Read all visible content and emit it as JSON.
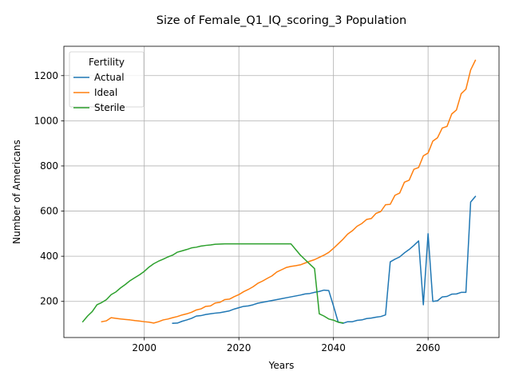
{
  "chart_data": {
    "type": "line",
    "title": "Size of Female_Q1_IQ_scoring_3 Population",
    "xlabel": "Years",
    "ylabel": "Number of Americans",
    "xlim": [
      1983,
      2075
    ],
    "ylim": [
      40,
      1330
    ],
    "xticks": [
      2000,
      2020,
      2040,
      2060
    ],
    "yticks": [
      200,
      400,
      600,
      800,
      1000,
      1200
    ],
    "grid": true,
    "legend": {
      "title": "Fertility",
      "placement": "top-left"
    },
    "series": [
      {
        "name": "Actual",
        "color": "#1f77b4",
        "points": [
          [
            2006,
            103
          ],
          [
            2007,
            104
          ],
          [
            2008,
            112
          ],
          [
            2009,
            118
          ],
          [
            2010,
            125
          ],
          [
            2011,
            135
          ],
          [
            2012,
            137
          ],
          [
            2013,
            142
          ],
          [
            2014,
            145
          ],
          [
            2015,
            148
          ],
          [
            2016,
            150
          ],
          [
            2017,
            154
          ],
          [
            2018,
            158
          ],
          [
            2019,
            166
          ],
          [
            2020,
            172
          ],
          [
            2021,
            178
          ],
          [
            2022,
            180
          ],
          [
            2023,
            185
          ],
          [
            2024,
            192
          ],
          [
            2025,
            196
          ],
          [
            2026,
            200
          ],
          [
            2027,
            204
          ],
          [
            2028,
            208
          ],
          [
            2029,
            212
          ],
          [
            2030,
            216
          ],
          [
            2031,
            220
          ],
          [
            2032,
            224
          ],
          [
            2033,
            228
          ],
          [
            2034,
            233
          ],
          [
            2035,
            235
          ],
          [
            2036,
            240
          ],
          [
            2037,
            244
          ],
          [
            2038,
            250
          ],
          [
            2039,
            248
          ],
          [
            2040,
            180
          ],
          [
            2041,
            108
          ],
          [
            2042,
            103
          ],
          [
            2043,
            110
          ],
          [
            2044,
            110
          ],
          [
            2045,
            116
          ],
          [
            2046,
            118
          ],
          [
            2047,
            124
          ],
          [
            2048,
            126
          ],
          [
            2049,
            130
          ],
          [
            2050,
            133
          ],
          [
            2051,
            140
          ],
          [
            2052,
            375
          ],
          [
            2053,
            387
          ],
          [
            2054,
            397
          ],
          [
            2055,
            415
          ],
          [
            2056,
            430
          ],
          [
            2057,
            448
          ],
          [
            2058,
            468
          ],
          [
            2059,
            185
          ],
          [
            2060,
            500
          ],
          [
            2061,
            200
          ],
          [
            2062,
            203
          ],
          [
            2063,
            220
          ],
          [
            2064,
            222
          ],
          [
            2065,
            232
          ],
          [
            2066,
            233
          ],
          [
            2067,
            240
          ],
          [
            2068,
            240
          ],
          [
            2069,
            640
          ],
          [
            2070,
            665
          ]
        ]
      },
      {
        "name": "Ideal",
        "color": "#ff7f0e",
        "points": [
          [
            1991,
            110
          ],
          [
            1992,
            114
          ],
          [
            1993,
            128
          ],
          [
            1994,
            125
          ],
          [
            1995,
            122
          ],
          [
            1996,
            120
          ],
          [
            1997,
            118
          ],
          [
            1998,
            115
          ],
          [
            1999,
            113
          ],
          [
            2000,
            110
          ],
          [
            2001,
            108
          ],
          [
            2002,
            104
          ],
          [
            2003,
            110
          ],
          [
            2004,
            118
          ],
          [
            2005,
            122
          ],
          [
            2006,
            128
          ],
          [
            2007,
            133
          ],
          [
            2008,
            140
          ],
          [
            2009,
            145
          ],
          [
            2010,
            152
          ],
          [
            2011,
            162
          ],
          [
            2012,
            167
          ],
          [
            2013,
            178
          ],
          [
            2014,
            180
          ],
          [
            2015,
            193
          ],
          [
            2016,
            196
          ],
          [
            2017,
            208
          ],
          [
            2018,
            210
          ],
          [
            2019,
            221
          ],
          [
            2020,
            230
          ],
          [
            2021,
            243
          ],
          [
            2022,
            253
          ],
          [
            2023,
            265
          ],
          [
            2024,
            280
          ],
          [
            2025,
            290
          ],
          [
            2026,
            302
          ],
          [
            2027,
            313
          ],
          [
            2028,
            330
          ],
          [
            2029,
            340
          ],
          [
            2030,
            350
          ],
          [
            2031,
            355
          ],
          [
            2032,
            358
          ],
          [
            2033,
            362
          ],
          [
            2034,
            370
          ],
          [
            2035,
            378
          ],
          [
            2036,
            385
          ],
          [
            2037,
            395
          ],
          [
            2038,
            405
          ],
          [
            2039,
            417
          ],
          [
            2040,
            435
          ],
          [
            2041,
            455
          ],
          [
            2042,
            475
          ],
          [
            2043,
            498
          ],
          [
            2044,
            513
          ],
          [
            2045,
            533
          ],
          [
            2046,
            545
          ],
          [
            2047,
            563
          ],
          [
            2048,
            567
          ],
          [
            2049,
            590
          ],
          [
            2050,
            598
          ],
          [
            2051,
            628
          ],
          [
            2052,
            630
          ],
          [
            2053,
            670
          ],
          [
            2054,
            680
          ],
          [
            2055,
            728
          ],
          [
            2056,
            737
          ],
          [
            2057,
            785
          ],
          [
            2058,
            793
          ],
          [
            2059,
            845
          ],
          [
            2060,
            857
          ],
          [
            2061,
            910
          ],
          [
            2062,
            925
          ],
          [
            2063,
            968
          ],
          [
            2064,
            975
          ],
          [
            2065,
            1030
          ],
          [
            2066,
            1048
          ],
          [
            2067,
            1120
          ],
          [
            2068,
            1140
          ],
          [
            2069,
            1225
          ],
          [
            2070,
            1268
          ]
        ]
      },
      {
        "name": "Sterile",
        "color": "#2ca02c",
        "points": [
          [
            1987,
            110
          ],
          [
            1988,
            135
          ],
          [
            1989,
            155
          ],
          [
            1990,
            185
          ],
          [
            1991,
            195
          ],
          [
            1992,
            208
          ],
          [
            1993,
            230
          ],
          [
            1994,
            242
          ],
          [
            1995,
            260
          ],
          [
            1996,
            275
          ],
          [
            1997,
            292
          ],
          [
            1998,
            305
          ],
          [
            1999,
            318
          ],
          [
            2000,
            333
          ],
          [
            2001,
            352
          ],
          [
            2002,
            367
          ],
          [
            2003,
            378
          ],
          [
            2004,
            387
          ],
          [
            2005,
            397
          ],
          [
            2006,
            405
          ],
          [
            2007,
            418
          ],
          [
            2008,
            424
          ],
          [
            2009,
            430
          ],
          [
            2010,
            437
          ],
          [
            2011,
            440
          ],
          [
            2012,
            445
          ],
          [
            2013,
            448
          ],
          [
            2014,
            450
          ],
          [
            2015,
            453
          ],
          [
            2016,
            454
          ],
          [
            2017,
            455
          ],
          [
            2018,
            455
          ],
          [
            2019,
            455
          ],
          [
            2020,
            455
          ],
          [
            2021,
            455
          ],
          [
            2022,
            455
          ],
          [
            2023,
            455
          ],
          [
            2024,
            455
          ],
          [
            2025,
            455
          ],
          [
            2026,
            455
          ],
          [
            2027,
            455
          ],
          [
            2028,
            455
          ],
          [
            2029,
            455
          ],
          [
            2030,
            455
          ],
          [
            2031,
            455
          ],
          [
            2032,
            430
          ],
          [
            2033,
            405
          ],
          [
            2034,
            385
          ],
          [
            2035,
            365
          ],
          [
            2036,
            345
          ],
          [
            2037,
            145
          ],
          [
            2038,
            135
          ],
          [
            2039,
            122
          ],
          [
            2040,
            117
          ],
          [
            2041,
            108
          ],
          [
            2042,
            105
          ]
        ]
      }
    ]
  }
}
